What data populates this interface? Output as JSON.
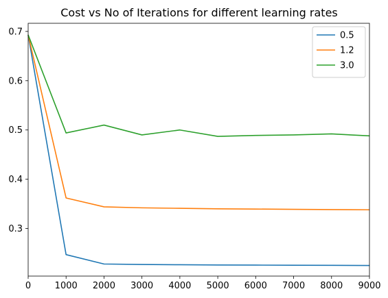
{
  "chart_data": {
    "type": "line",
    "title": "Cost vs No of Iterations for different learning rates",
    "xlabel": "",
    "ylabel": "",
    "xlim": [
      0,
      9000
    ],
    "ylim": [
      0.2035,
      0.7165
    ],
    "x": [
      0,
      1000,
      2000,
      3000,
      4000,
      5000,
      6000,
      7000,
      8000,
      9000
    ],
    "xticks": [
      0,
      1000,
      2000,
      3000,
      4000,
      5000,
      6000,
      7000,
      8000,
      9000
    ],
    "xtick_labels": [
      "0",
      "1000",
      "2000",
      "3000",
      "4000",
      "5000",
      "6000",
      "7000",
      "8000",
      "9000"
    ],
    "yticks": [
      0.3,
      0.4,
      0.5,
      0.6,
      0.7
    ],
    "ytick_labels": [
      "0.3",
      "0.4",
      "0.5",
      "0.6",
      "0.7"
    ],
    "grid": false,
    "legend_position": "top-right",
    "series": [
      {
        "name": "0.5",
        "color": "#1f77b4",
        "values": [
          0.693,
          0.247,
          0.228,
          0.227,
          0.2265,
          0.226,
          0.2258,
          0.2255,
          0.2253,
          0.225
        ]
      },
      {
        "name": "1.2",
        "color": "#ff7f0e",
        "values": [
          0.693,
          0.362,
          0.344,
          0.342,
          0.341,
          0.34,
          0.3395,
          0.339,
          0.3385,
          0.338
        ]
      },
      {
        "name": "3.0",
        "color": "#2ca02c",
        "values": [
          0.693,
          0.494,
          0.51,
          0.49,
          0.5,
          0.487,
          0.489,
          0.49,
          0.492,
          0.488
        ]
      }
    ]
  }
}
